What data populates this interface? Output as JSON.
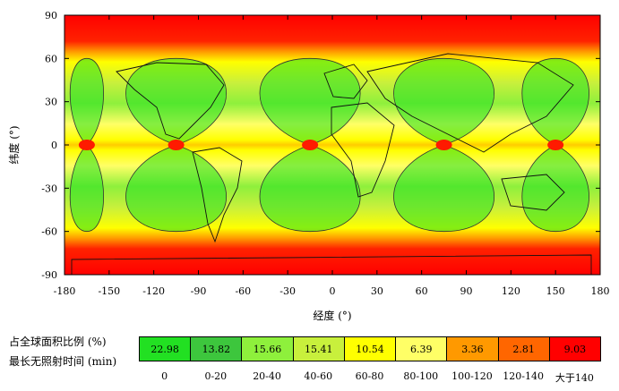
{
  "chart_data": {
    "type": "heatmap",
    "xlabel": "经度 (°)",
    "ylabel": "纬度 (°)",
    "xlim": [
      -180,
      180
    ],
    "ylim": [
      -90,
      90
    ],
    "xticks": [
      "-180",
      "-150",
      "-120",
      "-90",
      "-60",
      "-30",
      "0",
      "30",
      "60",
      "90",
      "120",
      "150",
      "180"
    ],
    "yticks": [
      "90",
      "60",
      "30",
      "0",
      "-30",
      "-60",
      "-90"
    ],
    "grid": false,
    "legend": {
      "row1_label": "占全球面积比例 (%)",
      "row2_label": "最长无照射时间 (min)",
      "cells": [
        {
          "percent": "22.98",
          "range": "0",
          "color": "#22e022"
        },
        {
          "percent": "13.82",
          "range": "0-20",
          "color": "#3dc63d"
        },
        {
          "percent": "15.66",
          "range": "20-40",
          "color": "#8ef03c"
        },
        {
          "percent": "15.41",
          "range": "40-60",
          "color": "#c8f03c"
        },
        {
          "percent": "10.54",
          "range": "60-80",
          "color": "#ffff00"
        },
        {
          "percent": "6.39",
          "range": "80-100",
          "color": "#ffff66"
        },
        {
          "percent": "3.36",
          "range": "100-120",
          "color": "#ff9900"
        },
        {
          "percent": "2.81",
          "range": "120-140",
          "color": "#ff6600"
        },
        {
          "percent": "9.03",
          "range": "大于140",
          "color": "#ff0000"
        }
      ]
    },
    "longitude_series": [
      {
        "lon_min": -180,
        "lon_max": -150
      },
      {
        "lon_min": -150,
        "lon_max": -60
      },
      {
        "lon_min": -60,
        "lon_max": 30
      },
      {
        "lon_min": 30,
        "lon_max": 120
      },
      {
        "lon_min": 120,
        "lon_max": 180
      }
    ]
  }
}
